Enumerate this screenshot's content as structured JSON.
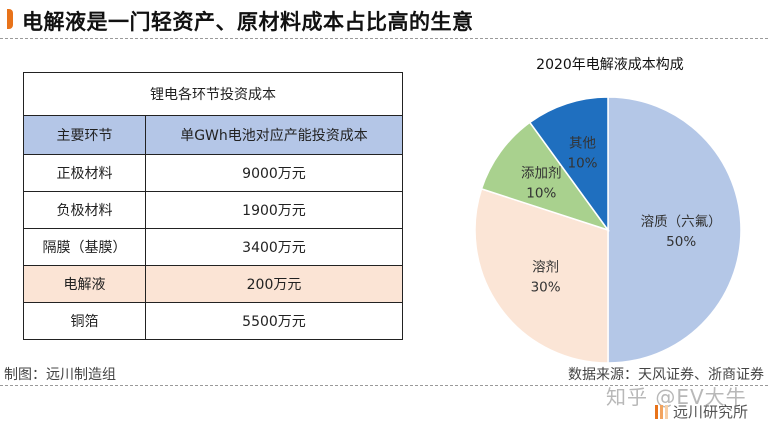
{
  "header": {
    "title": "电解液是一门轻资产、原材料成本占比高的生意",
    "accent_color": "#e8731a"
  },
  "table": {
    "title": "锂电各环节投资成本",
    "columns": [
      "主要环节",
      "单GWh电池对应产能投资成本"
    ],
    "header_color": "#b4c6e7",
    "highlight_color": "#fbe4d5",
    "rows": [
      {
        "segment": "正极材料",
        "cost": "9000万元"
      },
      {
        "segment": "负极材料",
        "cost": "1900万元"
      },
      {
        "segment": "隔膜（基膜）",
        "cost": "3400万元"
      },
      {
        "segment": "电解液",
        "cost": "200万元",
        "highlight": true
      },
      {
        "segment": "铜箔",
        "cost": "5500万元"
      }
    ]
  },
  "chart_data": {
    "type": "pie",
    "title": "2020年电解液成本构成",
    "categories": [
      "溶质（六氟）",
      "溶剂",
      "添加剂",
      "其他"
    ],
    "values": [
      50,
      30,
      10,
      10
    ],
    "labels": [
      "50%",
      "30%",
      "10%",
      "10%"
    ],
    "colors": [
      "#b4c7e7",
      "#fbe5d6",
      "#a9d18e",
      "#1f6fbf"
    ],
    "start_angle": "12 o'clock, clockwise"
  },
  "footer": {
    "left": "制图：远川制造组",
    "right": "数据来源：天风证券、浙商证券",
    "watermark": "知乎 @EV大牛",
    "brand": "远川研究所"
  }
}
